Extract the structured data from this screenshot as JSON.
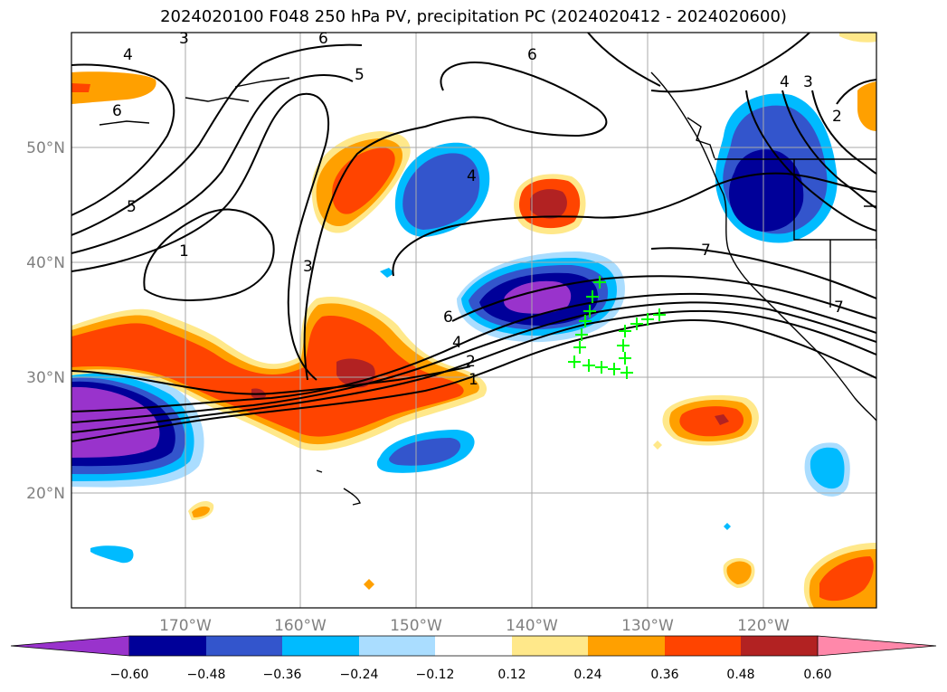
{
  "title": "2024020100 F048 250 hPa PV, precipitation PC (2024020412 - 2024020600)",
  "map": {
    "lat_labels": [
      "50°N",
      "40°N",
      "30°N",
      "20°N"
    ],
    "lon_labels": [
      "170°W",
      "160°W",
      "150°W",
      "140°W",
      "130°W",
      "120°W"
    ],
    "contour_labels": [
      "3",
      "6",
      "4",
      "6",
      "5",
      "4",
      "3",
      "2",
      "6",
      "5",
      "1",
      "4",
      "3",
      "7",
      "6",
      "4",
      "2",
      "1",
      "7"
    ],
    "markers": {
      "symbol": "plus",
      "color": "#00ff00"
    }
  },
  "colorbar": {
    "ticks": [
      "−0.60",
      "−0.48",
      "−0.36",
      "−0.24",
      "−0.12",
      "0.12",
      "0.24",
      "0.36",
      "0.48",
      "0.60"
    ],
    "colors": [
      "#9933cc",
      "#000099",
      "#3355cc",
      "#00bbff",
      "#aaddff",
      "#ffffff",
      "#ffe88a",
      "#ffa000",
      "#ff4400",
      "#b22222",
      "#ff88aa"
    ]
  }
}
